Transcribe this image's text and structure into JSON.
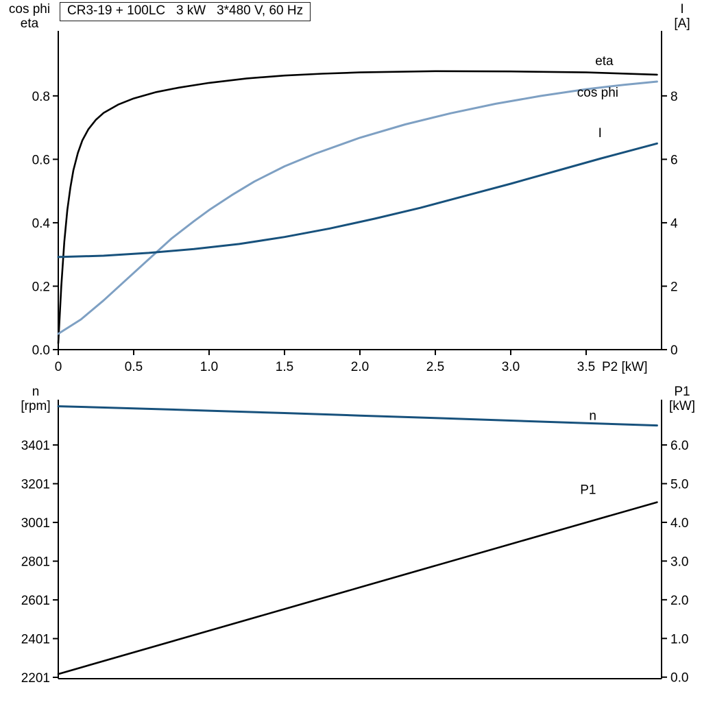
{
  "colors": {
    "black": "#000000",
    "dark_blue": "#17517c",
    "light_blue": "#7ea0c3",
    "axis": "#000000",
    "background": "#ffffff"
  },
  "chart_data": [
    {
      "id": "motor-electrical",
      "type": "line",
      "title": "CR3-19 + 100LC   3 kW   3*480 V, 60 Hz",
      "grid": false,
      "legend_position": "curve-end-labels",
      "x_axis": {
        "label": "P2 [kW]",
        "range": [
          0,
          4.0
        ],
        "ticks": [
          "0",
          "0.5",
          "1.0",
          "1.5",
          "2.0",
          "2.5",
          "3.0",
          "3.5"
        ]
      },
      "left_axis": {
        "name": "cos phi / eta",
        "corner_label": [
          "cos phi",
          "eta"
        ],
        "range_at_plot": [
          0,
          1.005
        ],
        "ticks": [
          "0.0",
          "0.2",
          "0.4",
          "0.6",
          "0.8"
        ]
      },
      "right_axis": {
        "name": "I [A]",
        "corner_label": [
          "I",
          "[A]"
        ],
        "range_at_plot": [
          0,
          10.05
        ],
        "ticks": [
          "0",
          "2",
          "4",
          "6",
          "8"
        ]
      },
      "series": [
        {
          "name": "eta",
          "axis": "left",
          "color_key": "black",
          "width": 2.6,
          "label": {
            "text": "eta",
            "x": 3.56,
            "v": 0.912,
            "color_key": "black"
          },
          "points": [
            [
              0,
              0.02
            ],
            [
              0.02,
              0.2
            ],
            [
              0.04,
              0.34
            ],
            [
              0.06,
              0.44
            ],
            [
              0.08,
              0.51
            ],
            [
              0.1,
              0.565
            ],
            [
              0.13,
              0.62
            ],
            [
              0.16,
              0.66
            ],
            [
              0.2,
              0.695
            ],
            [
              0.25,
              0.725
            ],
            [
              0.3,
              0.746
            ],
            [
              0.4,
              0.773
            ],
            [
              0.5,
              0.792
            ],
            [
              0.65,
              0.812
            ],
            [
              0.8,
              0.826
            ],
            [
              1.0,
              0.841
            ],
            [
              1.25,
              0.855
            ],
            [
              1.5,
              0.864
            ],
            [
              1.75,
              0.87
            ],
            [
              2.0,
              0.874
            ],
            [
              2.5,
              0.878
            ],
            [
              3.0,
              0.877
            ],
            [
              3.5,
              0.874
            ],
            [
              3.97,
              0.867
            ]
          ]
        },
        {
          "name": "cos-phi",
          "axis": "left",
          "color_key": "light_blue",
          "width": 3,
          "label": {
            "text": "cos phi",
            "x": 3.44,
            "v": 0.813,
            "color_key": "light_blue"
          },
          "points": [
            [
              0,
              0.05
            ],
            [
              0.15,
              0.095
            ],
            [
              0.3,
              0.155
            ],
            [
              0.45,
              0.22
            ],
            [
              0.6,
              0.285
            ],
            [
              0.75,
              0.35
            ],
            [
              0.9,
              0.405
            ],
            [
              1.0,
              0.44
            ],
            [
              1.15,
              0.487
            ],
            [
              1.3,
              0.53
            ],
            [
              1.5,
              0.578
            ],
            [
              1.7,
              0.617
            ],
            [
              2.0,
              0.668
            ],
            [
              2.3,
              0.71
            ],
            [
              2.6,
              0.745
            ],
            [
              2.9,
              0.775
            ],
            [
              3.2,
              0.8
            ],
            [
              3.5,
              0.821
            ],
            [
              3.75,
              0.835
            ],
            [
              3.97,
              0.845
            ]
          ]
        },
        {
          "name": "current",
          "axis": "right",
          "color_key": "dark_blue",
          "width": 3,
          "label": {
            "text": "I",
            "x": 3.58,
            "v": 6.85,
            "color_key": "dark_blue"
          },
          "points": [
            [
              0,
              2.92
            ],
            [
              0.3,
              2.96
            ],
            [
              0.6,
              3.05
            ],
            [
              0.9,
              3.17
            ],
            [
              1.2,
              3.33
            ],
            [
              1.5,
              3.55
            ],
            [
              1.8,
              3.82
            ],
            [
              2.1,
              4.13
            ],
            [
              2.4,
              4.47
            ],
            [
              2.7,
              4.85
            ],
            [
              3.0,
              5.23
            ],
            [
              3.3,
              5.63
            ],
            [
              3.6,
              6.03
            ],
            [
              3.97,
              6.5
            ]
          ]
        }
      ]
    },
    {
      "id": "speed-power",
      "type": "line",
      "title": "",
      "grid": false,
      "legend_position": "curve-end-labels",
      "x_axis": {
        "label": "",
        "range": [
          0,
          4.0
        ],
        "ticks": []
      },
      "left_axis": {
        "name": "n [rpm]",
        "corner_label": [
          "n",
          "[rpm]"
        ],
        "range_at_plot": [
          2194,
          3635
        ],
        "ticks": [
          "3401",
          "3201",
          "3001",
          "2801",
          "2601",
          "2401",
          "2201"
        ]
      },
      "right_axis": {
        "name": "P1 [kW]",
        "corner_label": [
          "P1",
          "[kW]"
        ],
        "range_at_plot": [
          -0.04,
          7.17
        ],
        "ticks": [
          "0.0",
          "1.0",
          "2.0",
          "3.0",
          "4.0",
          "5.0",
          "6.0"
        ]
      },
      "series": [
        {
          "name": "speed",
          "axis": "left",
          "color_key": "dark_blue",
          "width": 3,
          "label": {
            "text": "n",
            "x": 3.52,
            "v": 3556,
            "color_key": "dark_blue"
          },
          "points": [
            [
              0,
              3601
            ],
            [
              0.5,
              3590
            ],
            [
              1.0,
              3578
            ],
            [
              1.5,
              3566
            ],
            [
              2.0,
              3553
            ],
            [
              2.5,
              3540
            ],
            [
              3.0,
              3527
            ],
            [
              3.5,
              3514
            ],
            [
              3.97,
              3502
            ]
          ]
        },
        {
          "name": "input-power",
          "axis": "right",
          "color_key": "black",
          "width": 2.6,
          "label": {
            "text": "P1",
            "x": 3.46,
            "v": 4.86,
            "color_key": "black"
          },
          "points": [
            [
              0,
              0.08
            ],
            [
              1.0,
              1.2
            ],
            [
              2.0,
              2.32
            ],
            [
              3.0,
              3.44
            ],
            [
              3.97,
              4.52
            ]
          ]
        }
      ]
    }
  ]
}
